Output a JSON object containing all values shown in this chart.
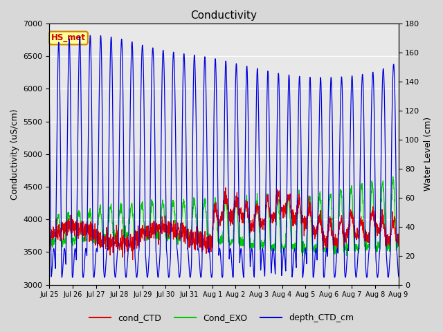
{
  "title": "Conductivity",
  "ylabel_left": "Conductivity (uS/cm)",
  "ylabel_right": "Water Level (cm)",
  "ylim_left": [
    3000,
    7000
  ],
  "ylim_right": [
    0,
    180
  ],
  "fig_facecolor": "#d8d8d8",
  "plot_facecolor": "#e8e8e8",
  "annotation_text": "HS_met",
  "annotation_bg": "#ffff99",
  "annotation_border": "#cc8800",
  "annotation_text_color": "#cc0000",
  "line_red": "#dd0000",
  "line_green": "#00cc00",
  "line_blue": "#0000dd",
  "legend_labels": [
    "cond_CTD",
    "Cond_EXO",
    "depth_CTD_cm"
  ],
  "xtick_labels": [
    "Jul 25",
    "Jul 26",
    "Jul 27",
    "Jul 28",
    "Jul 29",
    "Jul 30",
    "Jul 31",
    "Aug 1",
    "Aug 2",
    "Aug 3",
    "Aug 4",
    "Aug 5",
    "Aug 6",
    "Aug 7",
    "Aug 8",
    "Aug 9"
  ],
  "n_days": 16
}
